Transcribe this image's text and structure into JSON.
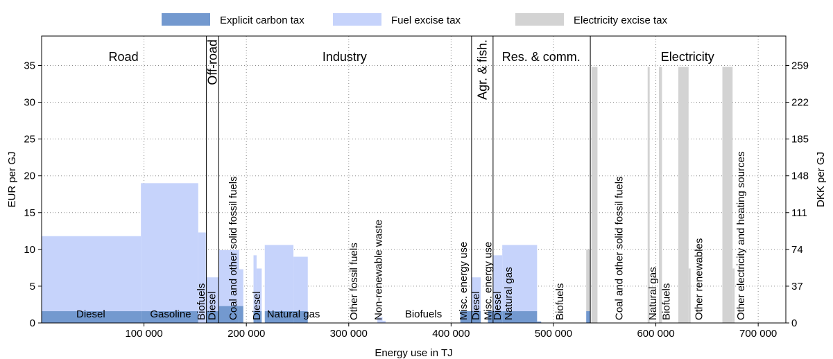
{
  "chart_data": {
    "type": "bar",
    "xlabel": "Energy use in TJ",
    "ylabel": "EUR per GJ",
    "ylabel_right": "DKK per GJ",
    "xlim": [
      0,
      727000
    ],
    "ylim": [
      0,
      39
    ],
    "y_ticks": [
      "0",
      "5",
      "10",
      "15",
      "20",
      "25",
      "30",
      "35"
    ],
    "y_tick_values": [
      0,
      5,
      10,
      15,
      20,
      25,
      30,
      35
    ],
    "y2_ticks": [
      "0",
      "37",
      "74",
      "111",
      "148",
      "185",
      "222",
      "259"
    ],
    "x_ticks": [
      "100 000",
      "200 000",
      "300 000",
      "400 000",
      "500 000",
      "600 000",
      "700 000"
    ],
    "x_tick_values": [
      100000,
      200000,
      300000,
      400000,
      500000,
      600000,
      700000
    ],
    "grid": true,
    "legend_position": "top-center",
    "legend": [
      {
        "label": "Explicit carbon tax",
        "color": "#7399cf"
      },
      {
        "label": "Fuel excise tax",
        "color": "#c6d3fb"
      },
      {
        "label": "Electricity excise tax",
        "color": "#d3d3d3"
      }
    ],
    "colors": {
      "carbon": "#7399cf",
      "fuel": "#c6d3fb",
      "electricity": "#d3d3d3"
    },
    "sector_boundaries": [
      161000,
      173000,
      420000,
      441000,
      536000
    ],
    "sectors": [
      {
        "label": "Road",
        "x": 80000,
        "rotated": false
      },
      {
        "label": "Off-road",
        "x": 167000,
        "rotated": true
      },
      {
        "label": "Industry",
        "x": 296000,
        "rotated": false
      },
      {
        "label": "Agr. & fish.",
        "x": 430500,
        "rotated": true
      },
      {
        "label": "Res. & comm.",
        "x": 488000,
        "rotated": false
      },
      {
        "label": "Electricity",
        "x": 631000,
        "rotated": false
      }
    ],
    "fuel_labels": [
      {
        "label": "Diesel",
        "x": 48000,
        "rotated": false
      },
      {
        "label": "Gasoline",
        "x": 126000,
        "rotated": false
      },
      {
        "label": "Biofuels",
        "x": 156000,
        "rotated": true
      },
      {
        "label": "Diesel",
        "x": 166500,
        "rotated": true
      },
      {
        "label": "Coal and other solid fossil fuels",
        "x": 187000,
        "rotated": true
      },
      {
        "label": "Diesel",
        "x": 210000,
        "rotated": true
      },
      {
        "label": "Natural gas",
        "x": 246000,
        "rotated": false
      },
      {
        "label": "Other fossil fuels",
        "x": 305000,
        "rotated": true
      },
      {
        "label": "Non-renewable waste",
        "x": 329000,
        "rotated": true
      },
      {
        "label": "Biofuels",
        "x": 373000,
        "rotated": false
      },
      {
        "label": "Misc. energy use",
        "x": 412000,
        "rotated": true
      },
      {
        "label": "Diesel",
        "x": 424000,
        "rotated": true
      },
      {
        "label": "Misc. energy use",
        "x": 436000,
        "rotated": true
      },
      {
        "label": "Diesel",
        "x": 445000,
        "rotated": true
      },
      {
        "label": "Natural gas",
        "x": 456000,
        "rotated": true
      },
      {
        "label": "Biofuels",
        "x": 506000,
        "rotated": true
      },
      {
        "label": "Coal and other solid fossil fuels",
        "x": 564000,
        "rotated": true
      },
      {
        "label": "Natural gas",
        "x": 597000,
        "rotated": true
      },
      {
        "label": "Biofuels",
        "x": 610000,
        "rotated": true
      },
      {
        "label": "Other renewables",
        "x": 642000,
        "rotated": true
      },
      {
        "label": "Other electricity and heating sources",
        "x": 683000,
        "rotated": true
      }
    ],
    "bars": [
      {
        "x0": 0,
        "x1": 97000,
        "carbon": 1.6,
        "fuel": 10.2,
        "elec": 0
      },
      {
        "x0": 97000,
        "x1": 153000,
        "carbon": 1.6,
        "fuel": 17.4,
        "elec": 0
      },
      {
        "x0": 153000,
        "x1": 161000,
        "carbon": 0,
        "fuel": 12.3,
        "elec": 0
      },
      {
        "x0": 161000,
        "x1": 173000,
        "carbon": 1.6,
        "fuel": 4.6,
        "elec": 0
      },
      {
        "x0": 173000,
        "x1": 193000,
        "carbon": 2.3,
        "fuel": 7.6,
        "elec": 0
      },
      {
        "x0": 193000,
        "x1": 197000,
        "carbon": 2.3,
        "fuel": 5.0,
        "elec": 0
      },
      {
        "x0": 207000,
        "x1": 210000,
        "carbon": 1.6,
        "fuel": 7.6,
        "elec": 0
      },
      {
        "x0": 210000,
        "x1": 215000,
        "carbon": 1.6,
        "fuel": 5.8,
        "elec": 0
      },
      {
        "x0": 218000,
        "x1": 246000,
        "carbon": 1.6,
        "fuel": 9.0,
        "elec": 0
      },
      {
        "x0": 246000,
        "x1": 260000,
        "carbon": 1.6,
        "fuel": 7.4,
        "elec": 0
      },
      {
        "x0": 328000,
        "x1": 333000,
        "carbon": 0,
        "fuel": 0.8,
        "elec": 0
      },
      {
        "x0": 333000,
        "x1": 336000,
        "carbon": 0,
        "fuel": 0.3,
        "elec": 0
      },
      {
        "x0": 409000,
        "x1": 420000,
        "carbon": 1.6,
        "fuel": 0,
        "elec": 0
      },
      {
        "x0": 420000,
        "x1": 429000,
        "carbon": 1.6,
        "fuel": 4.6,
        "elec": 0
      },
      {
        "x0": 436000,
        "x1": 441000,
        "carbon": 1.6,
        "fuel": 0,
        "elec": 0
      },
      {
        "x0": 441000,
        "x1": 450000,
        "carbon": 1.6,
        "fuel": 7.6,
        "elec": 0
      },
      {
        "x0": 450000,
        "x1": 484000,
        "carbon": 1.6,
        "fuel": 9.0,
        "elec": 0
      },
      {
        "x0": 484000,
        "x1": 488000,
        "carbon": 0.2,
        "fuel": 0,
        "elec": 0
      },
      {
        "x0": 532000,
        "x1": 536000,
        "carbon": 1.6,
        "fuel": 0,
        "elec": 8.4
      },
      {
        "x0": 537000,
        "x1": 543000,
        "carbon": 0,
        "fuel": 0,
        "elec": 34.8
      },
      {
        "x0": 592000,
        "x1": 594000,
        "carbon": 0,
        "fuel": 0,
        "elec": 34.8
      },
      {
        "x0": 603000,
        "x1": 606000,
        "carbon": 0,
        "fuel": 0,
        "elec": 34.8
      },
      {
        "x0": 622000,
        "x1": 632000,
        "carbon": 0,
        "fuel": 0,
        "elec": 34.8
      },
      {
        "x0": 632000,
        "x1": 634000,
        "carbon": 0,
        "fuel": 0,
        "elec": 7.4
      },
      {
        "x0": 665000,
        "x1": 675000,
        "carbon": 0,
        "fuel": 0,
        "elec": 34.8
      },
      {
        "x0": 675000,
        "x1": 677000,
        "carbon": 0,
        "fuel": 0,
        "elec": 7.4
      }
    ]
  }
}
